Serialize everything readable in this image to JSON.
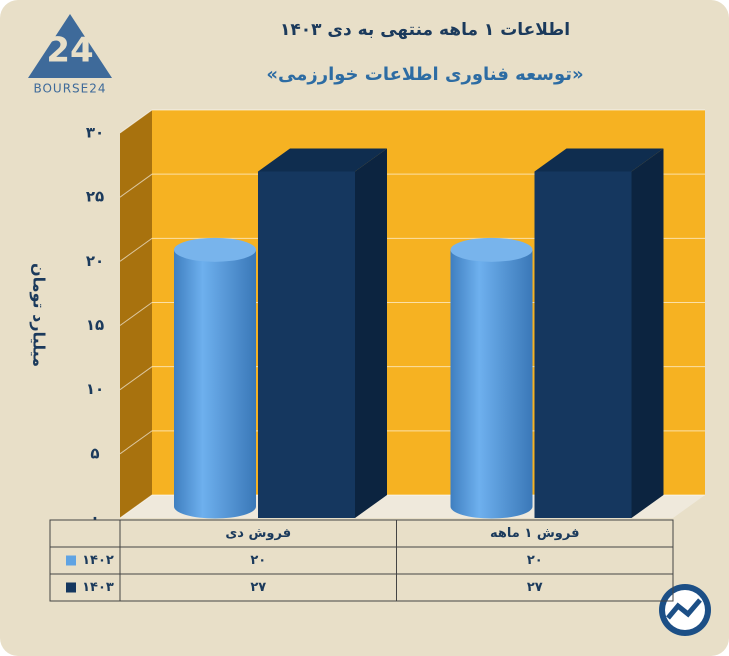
{
  "logo": {
    "text": "BOURSE24"
  },
  "chart_data": {
    "type": "bar3d",
    "title": "اطلاعات ۱ ماهه منتهی به دی ۱۴۰۳",
    "subtitle": "«توسعه فناوری اطلاعات خوارزمی»",
    "y_label": "میلیارد تومان",
    "categories": [
      "فروش دی",
      "فروش ۱ ماهه"
    ],
    "series": [
      {
        "name": "۱۴۰۲",
        "color": "#5fa3e3",
        "values": [
          20,
          20
        ],
        "value_labels": [
          "۲۰",
          "۲۰"
        ]
      },
      {
        "name": "۱۴۰۳",
        "color": "#15375f",
        "values": [
          27,
          27
        ],
        "value_labels": [
          "۲۷",
          "۲۷"
        ]
      }
    ],
    "ylim": [
      0,
      30
    ],
    "yticks": [
      {
        "value": 0,
        "label": "۰"
      },
      {
        "value": 5,
        "label": "۵"
      },
      {
        "value": 10,
        "label": "۱۰"
      },
      {
        "value": 15,
        "label": "۱۵"
      },
      {
        "value": 20,
        "label": "۲۰"
      },
      {
        "value": 25,
        "label": "۲۵"
      },
      {
        "value": 30,
        "label": "۳۰"
      }
    ],
    "grid": true
  }
}
